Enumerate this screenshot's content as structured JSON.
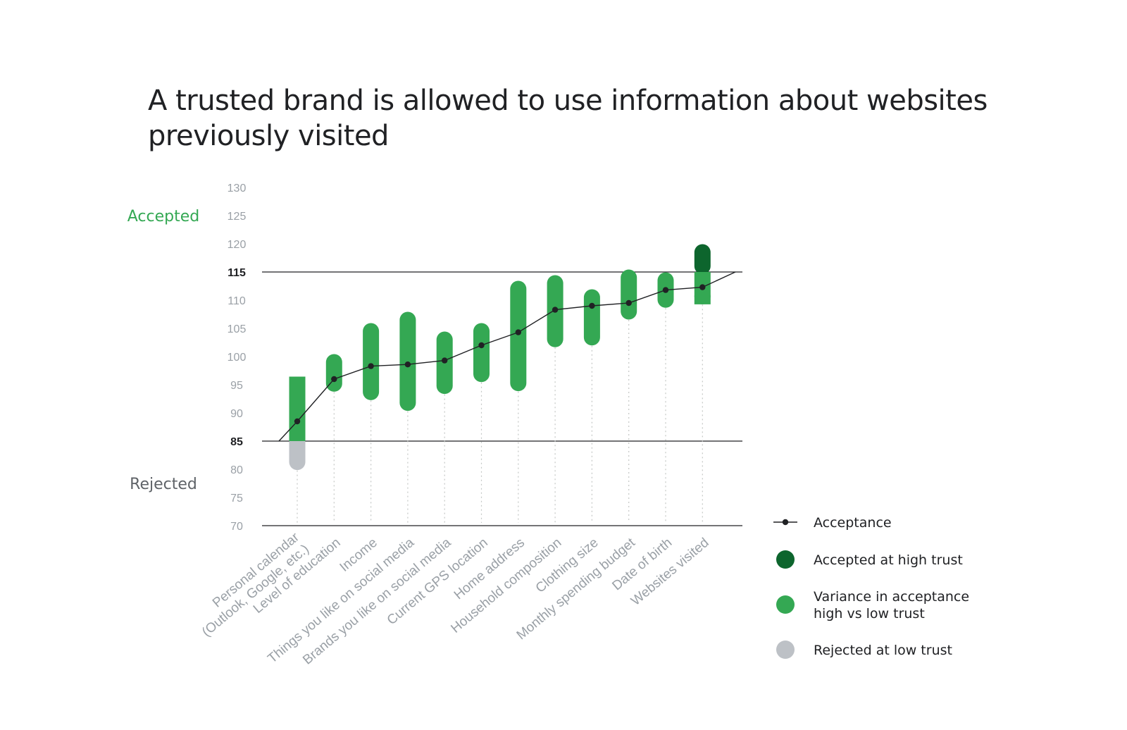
{
  "chart_data": {
    "type": "range-dot",
    "title": "A trusted brand is allowed to use information about websites previously visited",
    "zone_labels": {
      "accepted": "Accepted",
      "rejected": "Rejected"
    },
    "y_ticks": [
      130,
      125,
      120,
      115,
      110,
      105,
      100,
      95,
      90,
      85,
      80,
      75,
      70
    ],
    "bold_ticks": [
      115,
      85
    ],
    "ylim": [
      70,
      130
    ],
    "thresholds": {
      "accepted": 115,
      "rejected": 85
    },
    "categories": [
      [
        "Personal calendar",
        "(Outlook, Google, etc.)"
      ],
      [
        "Level of education"
      ],
      [
        "Income"
      ],
      [
        "Things you like on social media"
      ],
      [
        "Brands you like on social media"
      ],
      [
        "Current GPS location"
      ],
      [
        "Home address"
      ],
      [
        "Household composition"
      ],
      [
        "Clothing size"
      ],
      [
        "Monthly spending budget"
      ],
      [
        "Date of birth"
      ],
      [
        "Websites visited"
      ]
    ],
    "acceptance": [
      88.5,
      96,
      98.3,
      98.6,
      99.3,
      102,
      104.3,
      108.3,
      109,
      109.5,
      111.8,
      112.3
    ],
    "low_trust": [
      81.3,
      95.2,
      93.7,
      91.8,
      94.8,
      96.9,
      95.3,
      103.1,
      103.4,
      108,
      110.1,
      110.7
    ],
    "high_trust": [
      95,
      99,
      104.5,
      106.5,
      103,
      104.5,
      112,
      113,
      110.5,
      114,
      113.5,
      118.5
    ],
    "colors": {
      "variance": "#34a853",
      "accepted_high_trust": "#0d652d",
      "rejected_low_trust": "#bdc1c6",
      "line": "#202124"
    },
    "legend": [
      {
        "key": "acceptance",
        "label": [
          "Acceptance"
        ]
      },
      {
        "key": "accepted_high_trust",
        "label": [
          "Accepted at high trust"
        ]
      },
      {
        "key": "variance",
        "label": [
          "Variance in acceptance",
          "high vs low trust"
        ]
      },
      {
        "key": "rejected_low_trust",
        "label": [
          "Rejected at low trust"
        ]
      }
    ]
  }
}
